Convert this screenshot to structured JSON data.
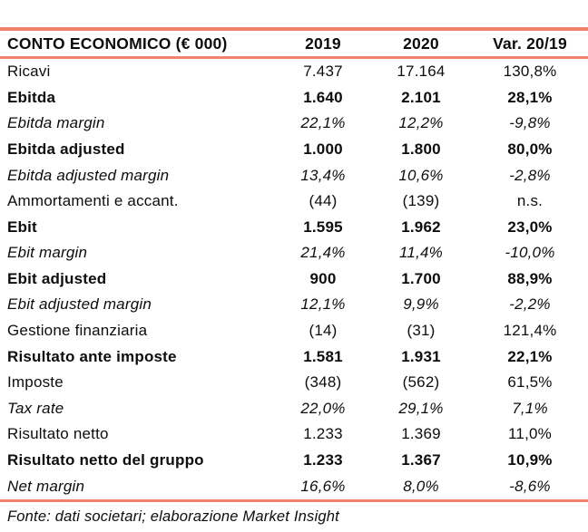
{
  "chart_data": {
    "type": "table",
    "title": "CONTO ECONOMICO (€ 000)",
    "columns": [
      "2019",
      "2020",
      "Var. 20/19"
    ],
    "rows": [
      {
        "label": "Ricavi",
        "y2019": "7.437",
        "y2020": "17.164",
        "var": "130,8%",
        "emphasis": "regular"
      },
      {
        "label": "Ebitda",
        "y2019": "1.640",
        "y2020": "2.101",
        "var": "28,1%",
        "emphasis": "bold"
      },
      {
        "label": "Ebitda margin",
        "y2019": "22,1%",
        "y2020": "12,2%",
        "var": "-9,8%",
        "emphasis": "italic"
      },
      {
        "label": "Ebitda adjusted",
        "y2019": "1.000",
        "y2020": "1.800",
        "var": "80,0%",
        "emphasis": "bold"
      },
      {
        "label": "Ebitda adjusted margin",
        "y2019": "13,4%",
        "y2020": "10,6%",
        "var": "-2,8%",
        "emphasis": "italic"
      },
      {
        "label": "Ammortamenti e accant.",
        "y2019": "(44)",
        "y2020": "(139)",
        "var": "n.s.",
        "emphasis": "regular"
      },
      {
        "label": "Ebit",
        "y2019": "1.595",
        "y2020": "1.962",
        "var": "23,0%",
        "emphasis": "bold"
      },
      {
        "label": "Ebit margin",
        "y2019": "21,4%",
        "y2020": "11,4%",
        "var": "-10,0%",
        "emphasis": "italic"
      },
      {
        "label": "Ebit adjusted",
        "y2019": "900",
        "y2020": "1.700",
        "var": "88,9%",
        "emphasis": "bold"
      },
      {
        "label": "Ebit adjusted margin",
        "y2019": "12,1%",
        "y2020": "9,9%",
        "var": "-2,2%",
        "emphasis": "italic"
      },
      {
        "label": "Gestione finanziaria",
        "y2019": "(14)",
        "y2020": "(31)",
        "var": "121,4%",
        "emphasis": "regular"
      },
      {
        "label": "Risultato ante imposte",
        "y2019": "1.581",
        "y2020": "1.931",
        "var": "22,1%",
        "emphasis": "bold"
      },
      {
        "label": "Imposte",
        "y2019": "(348)",
        "y2020": "(562)",
        "var": "61,5%",
        "emphasis": "regular"
      },
      {
        "label": "Tax rate",
        "y2019": "22,0%",
        "y2020": "29,1%",
        "var": "7,1%",
        "emphasis": "italic"
      },
      {
        "label": "Risultato netto",
        "y2019": "1.233",
        "y2020": "1.369",
        "var": "11,0%",
        "emphasis": "regular"
      },
      {
        "label": "Risultato netto del gruppo",
        "y2019": "1.233",
        "y2020": "1.367",
        "var": "10,9%",
        "emphasis": "bold"
      },
      {
        "label": "Net margin",
        "y2019": "16,6%",
        "y2020": "8,0%",
        "var": "-8,6%",
        "emphasis": "italic"
      }
    ],
    "source": "Fonte: dati societari; elaborazione Market Insight"
  },
  "colors": {
    "accent_line": "#f0816a",
    "text": "#0d0d0d",
    "background": "#ffffff"
  }
}
